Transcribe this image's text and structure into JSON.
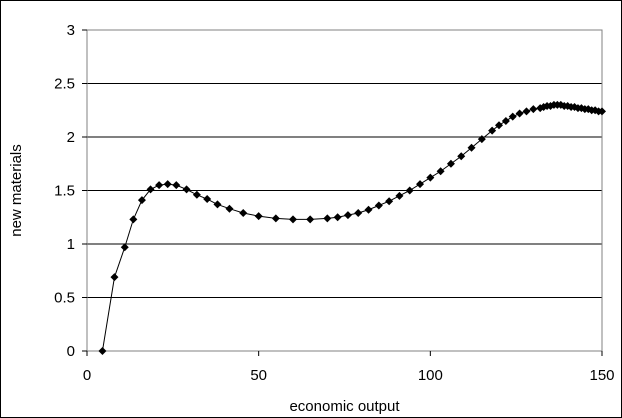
{
  "chart_data": {
    "type": "scatter",
    "title": "",
    "xlabel": "economic output",
    "ylabel": "new materials",
    "xlim": [
      0,
      150
    ],
    "ylim": [
      0,
      3
    ],
    "xticks": [
      "0",
      "50",
      "100",
      "150"
    ],
    "yticks": [
      "0",
      "0.5",
      "1",
      "1.5",
      "2",
      "2.5",
      "3"
    ],
    "grid": "horizontal",
    "legend": "none",
    "line_color": "#000000",
    "marker": "diamond",
    "series": [
      {
        "x": [
          4.5,
          8,
          11,
          13.5,
          16,
          18.5,
          21,
          23.5,
          26,
          29,
          32,
          35,
          38,
          41.5,
          45.5,
          50,
          55,
          60,
          65,
          70,
          73,
          76,
          79,
          82,
          85,
          88,
          91,
          94,
          97,
          100,
          103,
          106,
          109,
          112,
          115,
          118,
          120,
          122,
          124,
          126,
          128,
          130,
          132,
          133,
          134,
          135,
          136,
          137,
          138,
          139,
          140,
          141,
          142,
          143,
          144,
          145,
          146,
          147,
          148,
          149,
          150
        ],
        "y": [
          0,
          0.69,
          0.97,
          1.23,
          1.41,
          1.51,
          1.55,
          1.56,
          1.55,
          1.51,
          1.46,
          1.42,
          1.37,
          1.33,
          1.29,
          1.26,
          1.24,
          1.23,
          1.23,
          1.24,
          1.25,
          1.27,
          1.29,
          1.32,
          1.36,
          1.4,
          1.45,
          1.5,
          1.56,
          1.62,
          1.68,
          1.75,
          1.82,
          1.9,
          1.98,
          2.06,
          2.11,
          2.15,
          2.19,
          2.22,
          2.24,
          2.26,
          2.27,
          2.28,
          2.29,
          2.29,
          2.3,
          2.3,
          2.3,
          2.29,
          2.29,
          2.28,
          2.28,
          2.27,
          2.27,
          2.26,
          2.26,
          2.25,
          2.25,
          2.24,
          2.24
        ]
      }
    ]
  }
}
